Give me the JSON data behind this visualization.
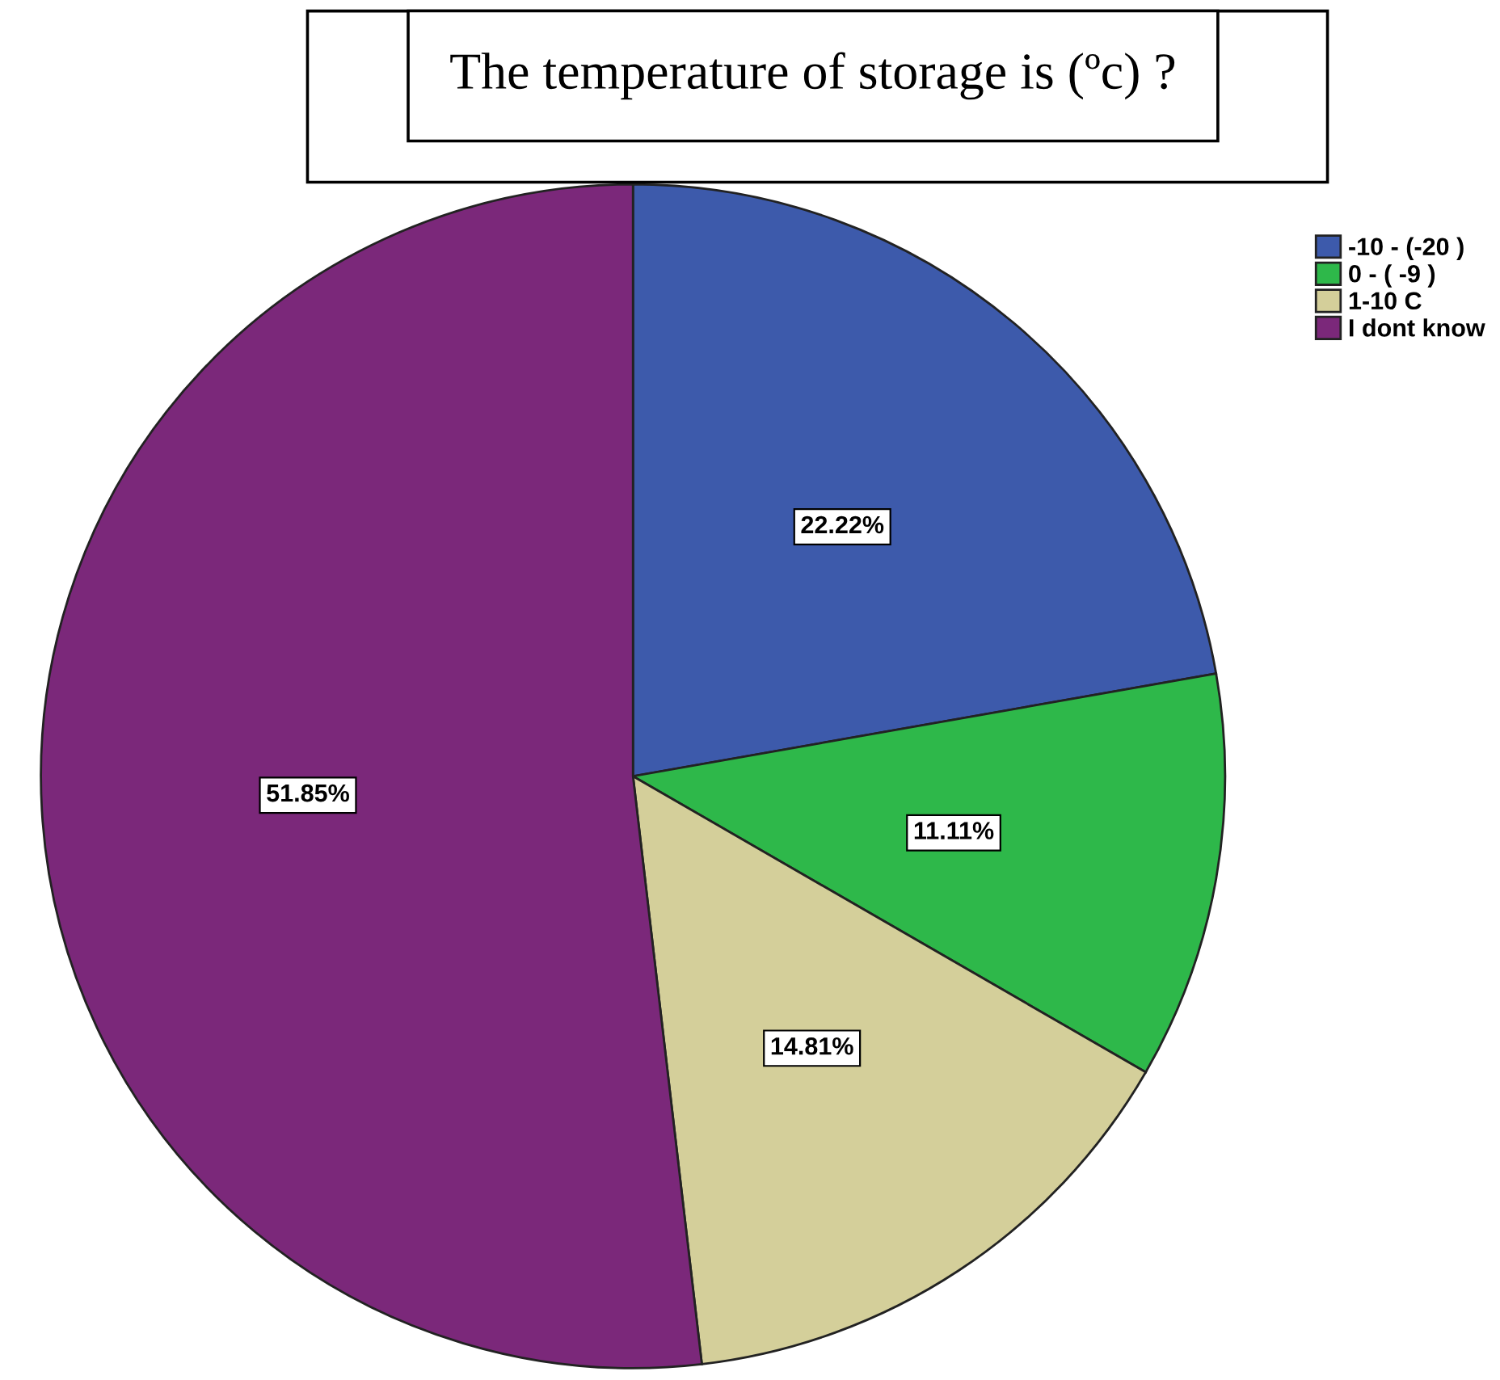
{
  "chart_data": {
    "type": "pie",
    "title": "The temperature of storage is (ºc) ?",
    "categories": [
      "-10 - (-20 )",
      "0 - ( -9 )",
      "1-10 C",
      "I dont know"
    ],
    "values": [
      22.22,
      11.11,
      14.81,
      51.85
    ],
    "colors": [
      "#3d5aab",
      "#2eb84a",
      "#d4cf9a",
      "#7b287a"
    ],
    "value_labels": [
      "22.22%",
      "11.11%",
      "14.81%",
      "51.85%"
    ],
    "legend": "top right"
  }
}
